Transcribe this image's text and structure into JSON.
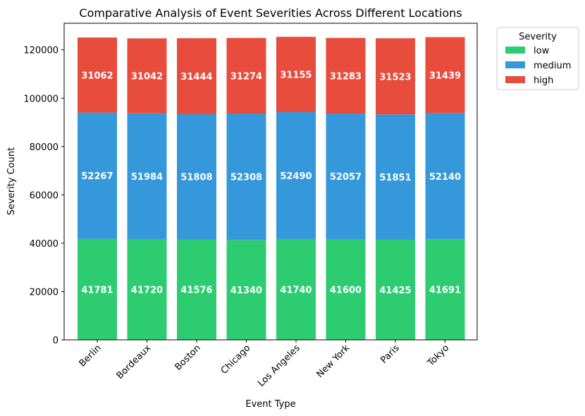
{
  "chart_data": {
    "type": "bar",
    "stacked": true,
    "title": "Comparative Analysis of Event Severities Across Different Locations",
    "xlabel": "Event Type",
    "ylabel": "Severity Count",
    "categories": [
      "Berlin",
      "Bordeaux",
      "Boston",
      "Chicago",
      "Los Angeles",
      "New York",
      "Paris",
      "Tokyo"
    ],
    "series": [
      {
        "name": "low",
        "color": "#2ecc71",
        "values": [
          41781,
          41720,
          41576,
          41340,
          41740,
          41600,
          41425,
          41691
        ]
      },
      {
        "name": "medium",
        "color": "#3498db",
        "values": [
          52267,
          51984,
          51808,
          52308,
          52490,
          52057,
          51851,
          52140
        ]
      },
      {
        "name": "high",
        "color": "#e74c3c",
        "values": [
          31062,
          31042,
          31444,
          31274,
          31155,
          31283,
          31523,
          31439
        ]
      }
    ],
    "ylim": [
      0,
      131000
    ],
    "yticks": [
      0,
      20000,
      40000,
      60000,
      80000,
      100000,
      120000
    ],
    "xtick_rotation": -45,
    "grid": false,
    "legend": {
      "title": "Severity",
      "position": "outside-top-right"
    }
  }
}
